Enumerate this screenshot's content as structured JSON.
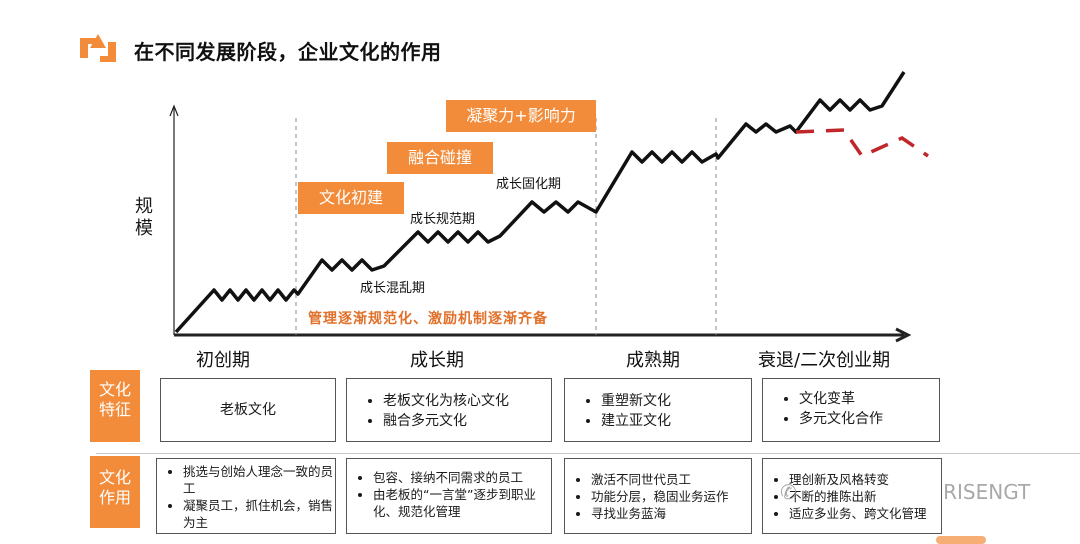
{
  "title": "在不同发展阶段，企业文化的作用",
  "y_axis_label": "规模",
  "orange_boxes": [
    {
      "text": "文化初建"
    },
    {
      "text": "融合碰撞"
    },
    {
      "text": "凝聚力+影响力"
    }
  ],
  "stage_labels": [
    "成长混乱期",
    "成长规范期",
    "成长固化期"
  ],
  "note": "管理逐渐规范化、激励机制逐渐齐备",
  "phases": [
    "初创期",
    "成长期",
    "成熟期",
    "衰退/二次创业期"
  ],
  "row_labels": {
    "features": "文化\n特征",
    "roles": "文化\n作用"
  },
  "features": [
    {
      "items": [
        "老板文化"
      ]
    },
    {
      "items": [
        "老板文化为核心文化",
        "融合多元文化"
      ]
    },
    {
      "items": [
        "重塑新文化",
        "建立亚文化"
      ]
    },
    {
      "items": [
        "文化变革",
        "多元文化合作"
      ]
    }
  ],
  "roles": [
    {
      "items": [
        "挑选与创始人理念一致的员工",
        "凝聚员工，抓住机会，销售为主"
      ]
    },
    {
      "items": [
        "包容、接纳不同需求的员工",
        "由老板的“一言堂”逐步到职业化、规范化管理"
      ]
    },
    {
      "items": [
        "激活不同世代员工",
        "功能分层，稳固业务运作",
        "寻找业务蓝海"
      ]
    },
    {
      "items": [
        "理创新及风格转变",
        "不断的推陈出新",
        "适应多业务、跨文化管理"
      ]
    }
  ],
  "watermark": "RISENGT",
  "colors": {
    "accent": "#f28c3a",
    "line": "#111111",
    "decline": "#c0262a"
  }
}
